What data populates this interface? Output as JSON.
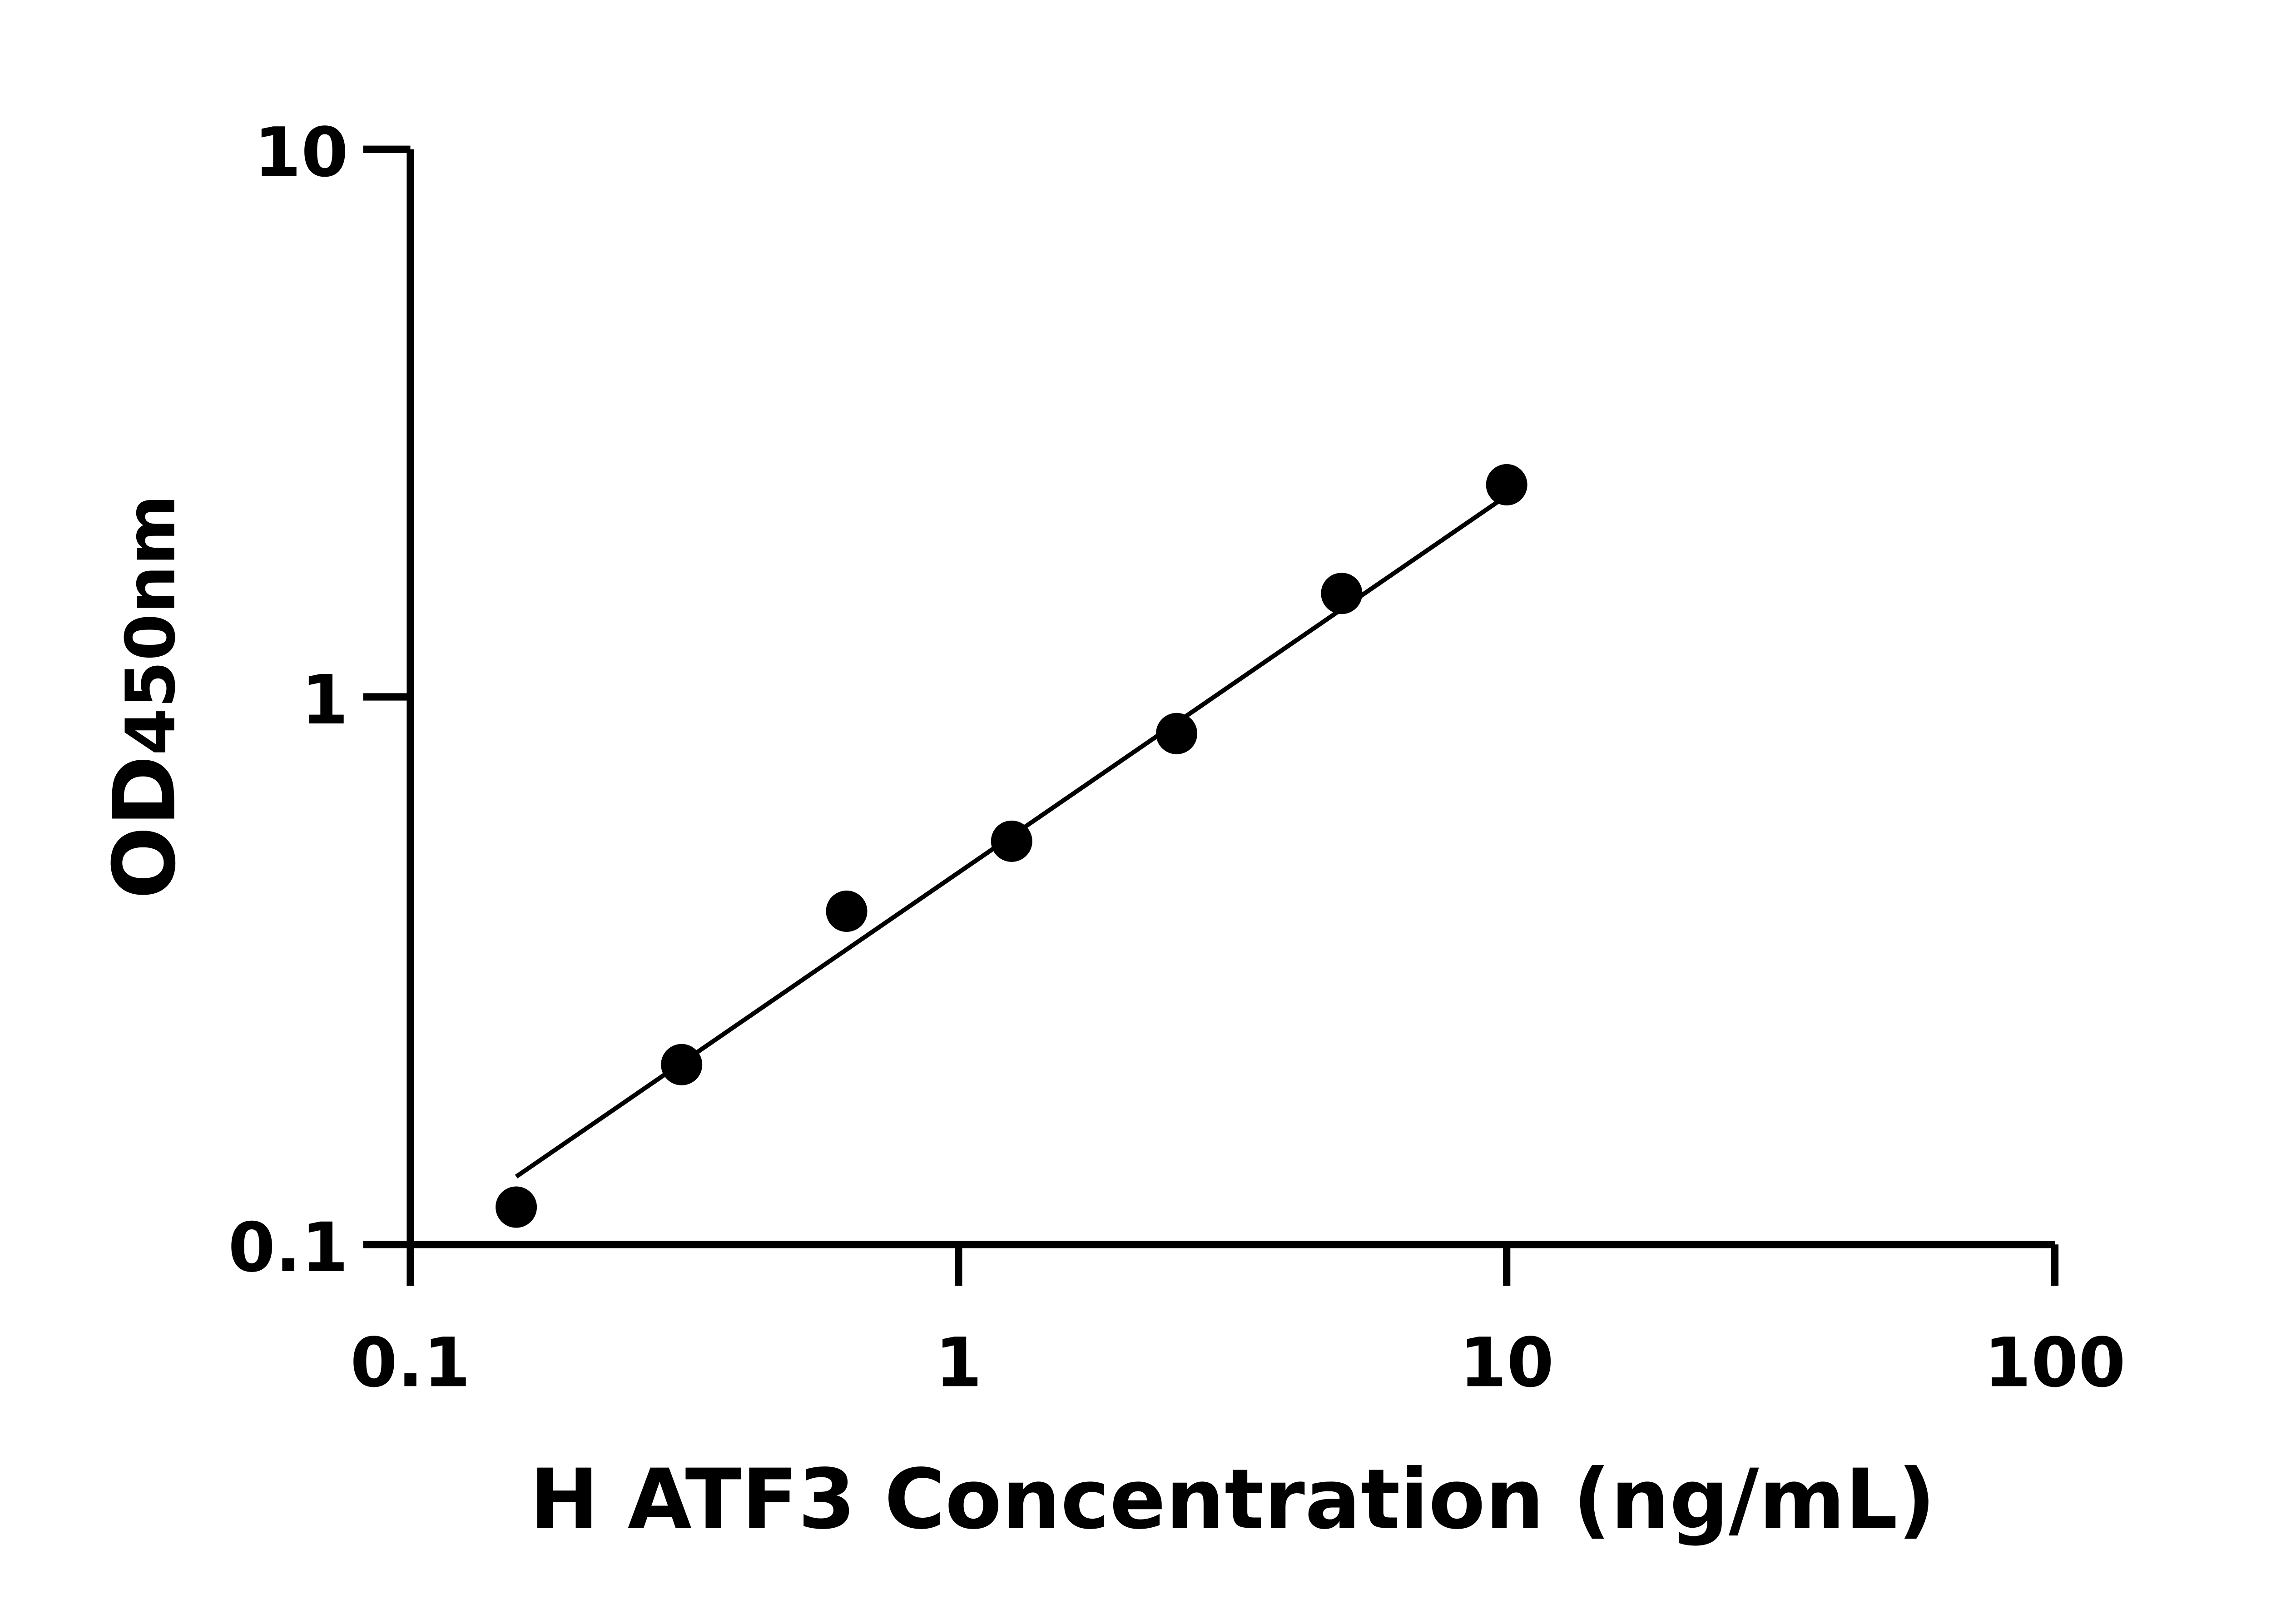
{
  "chart_data": {
    "type": "scatter",
    "title": "",
    "xlabel": "H ATF3 Concentration (ng/mL)",
    "ylabel_main": "OD",
    "ylabel_sub": "450nm",
    "x_scale": "log",
    "y_scale": "log",
    "xlim": [
      0.1,
      100
    ],
    "ylim": [
      0.1,
      10
    ],
    "x_ticks": [
      "0.1",
      "1",
      "10",
      "100"
    ],
    "x_tick_values": [
      0.1,
      1,
      10,
      100
    ],
    "y_ticks": [
      "0.1",
      "1",
      "10"
    ],
    "y_tick_values": [
      0.1,
      1,
      10
    ],
    "grid": false,
    "points": [
      {
        "x": 0.156,
        "y": 0.117
      },
      {
        "x": 0.3125,
        "y": 0.213
      },
      {
        "x": 0.625,
        "y": 0.406
      },
      {
        "x": 1.25,
        "y": 0.545
      },
      {
        "x": 2.5,
        "y": 0.857
      },
      {
        "x": 5,
        "y": 1.545
      },
      {
        "x": 10,
        "y": 2.44
      }
    ],
    "fit_line": {
      "x": [
        0.156,
        10
      ],
      "y": [
        0.133,
        2.33
      ]
    },
    "colors": {
      "points": "#000000",
      "line": "#000000",
      "axes": "#000000"
    }
  }
}
